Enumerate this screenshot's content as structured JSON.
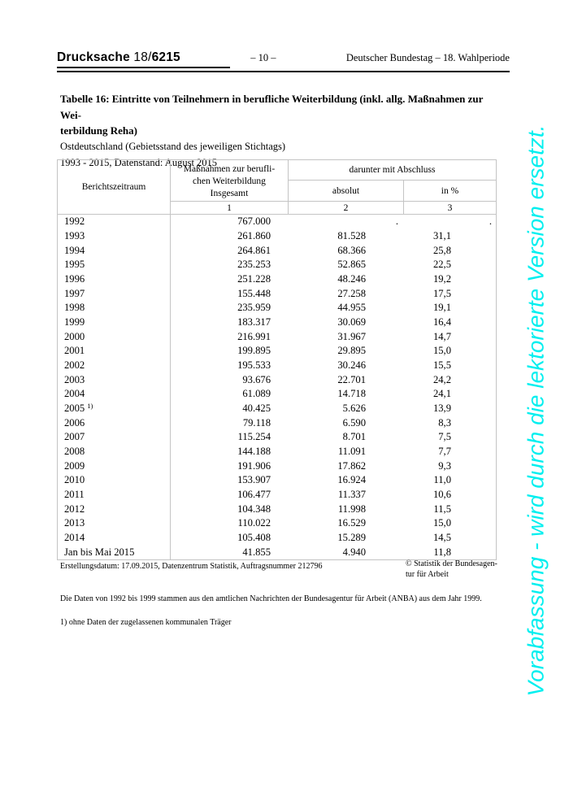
{
  "header": {
    "doc_label": "Drucksache",
    "doc_num_prefix": "18/",
    "doc_num_bold": "6215",
    "page_number": "– 10 –",
    "right_text": "Deutscher Bundestag – 18. Wahlperiode"
  },
  "watermark": {
    "text": "Vorabfassung - wird durch die lektorierte Version ersetzt.",
    "color": "#00efef"
  },
  "title": {
    "line1": "Tabelle 16: Eintritte von Teilnehmern in berufliche Weiterbildung (inkl. allg. Maßnahmen zur Wei-",
    "line2": "terbildung Reha)",
    "subtitle1": "Ostdeutschland (Gebietsstand des jeweiligen Stichtags)",
    "subtitle2": "1993 - 2015, Datenstand: August 2015"
  },
  "table": {
    "border_color": "#c4c4c4",
    "header": {
      "col1": "Berichtszeitraum",
      "col2_lines": [
        "Maßnahmen zur berufli-",
        "chen Weiterbildung",
        "Insgesamt"
      ],
      "group": "darunter mit Abschluss",
      "col3": "absolut",
      "col4": "in %",
      "num1": "1",
      "num2": "2",
      "num3": "3"
    },
    "rows": [
      {
        "period": "1992",
        "total": "767.000",
        "abs": ".",
        "pct": "."
      },
      {
        "period": "1993",
        "total": "261.860",
        "abs": "81.528",
        "pct": "31,1"
      },
      {
        "period": "1994",
        "total": "264.861",
        "abs": "68.366",
        "pct": "25,8"
      },
      {
        "period": "1995",
        "total": "235.253",
        "abs": "52.865",
        "pct": "22,5"
      },
      {
        "period": "1996",
        "total": "251.228",
        "abs": "48.246",
        "pct": "19,2"
      },
      {
        "period": "1997",
        "total": "155.448",
        "abs": "27.258",
        "pct": "17,5"
      },
      {
        "period": "1998",
        "total": "235.959",
        "abs": "44.955",
        "pct": "19,1"
      },
      {
        "period": "1999",
        "total": "183.317",
        "abs": "30.069",
        "pct": "16,4"
      },
      {
        "period": "2000",
        "total": "216.991",
        "abs": "31.967",
        "pct": "14,7"
      },
      {
        "period": "2001",
        "total": "199.895",
        "abs": "29.895",
        "pct": "15,0"
      },
      {
        "period": "2002",
        "total": "195.533",
        "abs": "30.246",
        "pct": "15,5"
      },
      {
        "period": "2003",
        "total": "93.676",
        "abs": "22.701",
        "pct": "24,2"
      },
      {
        "period": "2004",
        "total": "61.089",
        "abs": "14.718",
        "pct": "24,1"
      },
      {
        "period": "2005",
        "sup": "1)",
        "total": "40.425",
        "abs": "5.626",
        "pct": "13,9"
      },
      {
        "period": "2006",
        "total": "79.118",
        "abs": "6.590",
        "pct": "8,3"
      },
      {
        "period": "2007",
        "total": "115.254",
        "abs": "8.701",
        "pct": "7,5"
      },
      {
        "period": "2008",
        "total": "144.188",
        "abs": "11.091",
        "pct": "7,7"
      },
      {
        "period": "2009",
        "total": "191.906",
        "abs": "17.862",
        "pct": "9,3"
      },
      {
        "period": "2010",
        "total": "153.907",
        "abs": "16.924",
        "pct": "11,0"
      },
      {
        "period": "2011",
        "total": "106.477",
        "abs": "11.337",
        "pct": "10,6"
      },
      {
        "period": "2012",
        "total": "104.348",
        "abs": "11.998",
        "pct": "11,5"
      },
      {
        "period": "2013",
        "total": "110.022",
        "abs": "16.529",
        "pct": "15,0"
      },
      {
        "period": "2014",
        "total": "105.408",
        "abs": "15.289",
        "pct": "14,5"
      },
      {
        "period": "Jan bis Mai 2015",
        "total": "41.855",
        "abs": "4.940",
        "pct": "11,8"
      }
    ]
  },
  "footer": {
    "creation": "Erstellungsdatum: 17.09.2015, Datenzentrum Statistik, Auftragsnummer 212796",
    "copyright_line1": "© Statistik der Bundesagen-",
    "copyright_line2": "tur für Arbeit",
    "note_source": "Die Daten von 1992 bis 1999 stammen aus den amtlichen Nachrichten der Bundesagentur für Arbeit (ANBA) aus dem Jahr 1999.",
    "footnote": "1) ohne Daten der zugelassenen kommunalen Träger"
  }
}
